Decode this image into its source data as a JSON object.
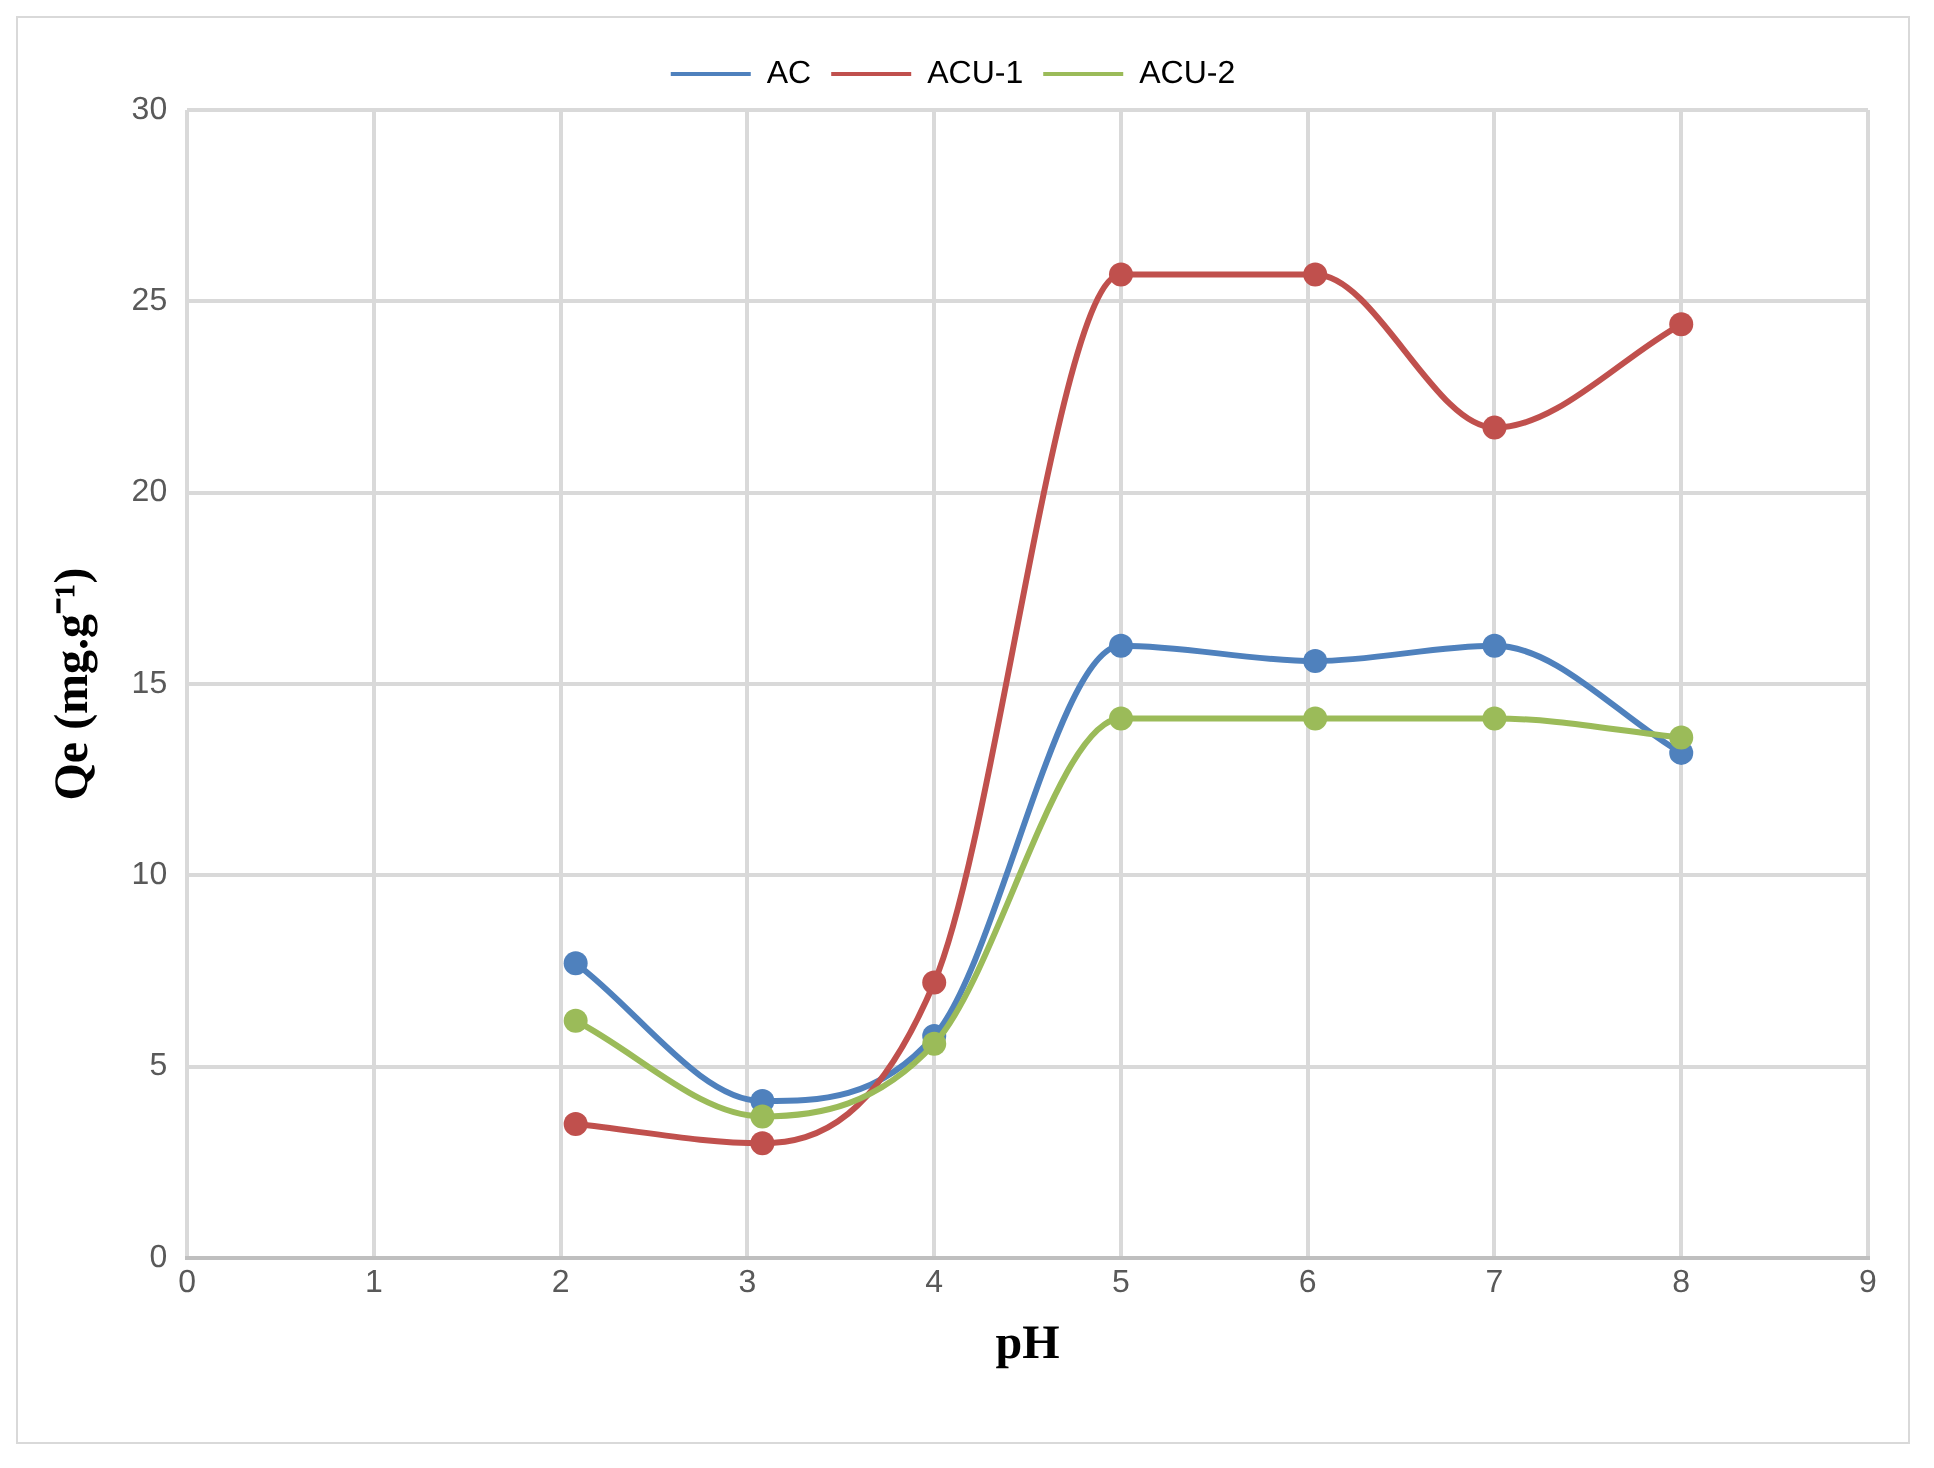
{
  "chart_data": {
    "type": "line",
    "xlabel": "pH",
    "ylabel": "Qe (mg.g⁻¹)",
    "x": [
      2.08,
      3.08,
      4,
      5,
      6.04,
      7,
      8
    ],
    "series": [
      {
        "name": "AC",
        "color": "#4f81bd",
        "values": [
          7.7,
          4.1,
          5.8,
          16.0,
          15.6,
          16.0,
          13.2
        ]
      },
      {
        "name": "ACU-1",
        "color": "#c0504d",
        "values": [
          3.5,
          3.0,
          7.2,
          25.7,
          25.7,
          21.7,
          24.4
        ]
      },
      {
        "name": "ACU-2",
        "color": "#9bbb59",
        "values": [
          6.2,
          3.7,
          5.6,
          14.1,
          14.1,
          14.1,
          13.6
        ]
      }
    ],
    "xlim": [
      0,
      9
    ],
    "xticks": [
      0,
      1,
      2,
      3,
      4,
      5,
      6,
      7,
      8,
      9
    ],
    "ylim": [
      0,
      30
    ],
    "yticks": [
      0,
      5,
      10,
      15,
      20,
      25,
      30
    ],
    "grid": true,
    "legend": "top",
    "marker": "circle",
    "line_style": "solid"
  }
}
